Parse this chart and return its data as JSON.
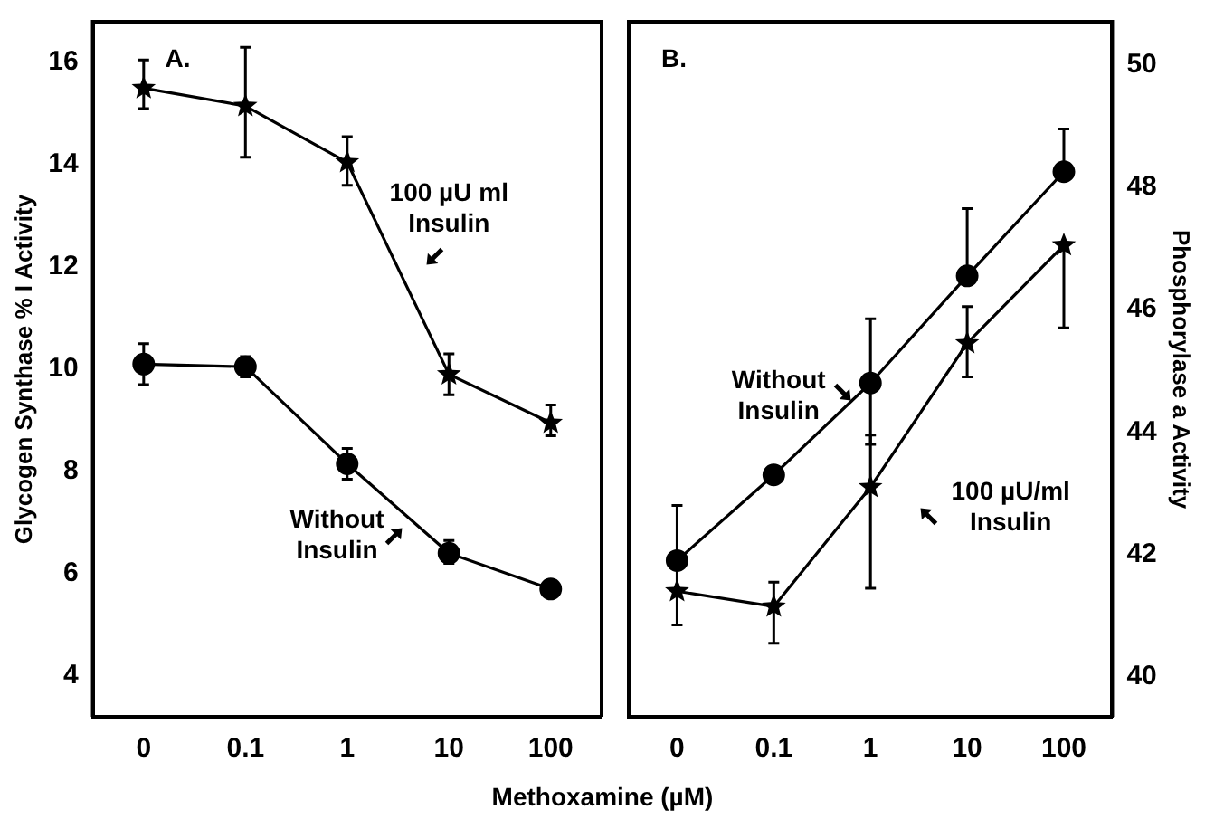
{
  "chart_data": [
    {
      "type": "line",
      "title": "A.",
      "xlabel": "Methoxamine (µM)",
      "ylabel": "Glycogen Synthase % I Activity",
      "categories": [
        "0",
        "0.1",
        "1",
        "10",
        "100"
      ],
      "ylim": [
        3.2,
        16.8
      ],
      "yticks": [
        4,
        6,
        8,
        10,
        12,
        14,
        16
      ],
      "grid": false,
      "legend": false,
      "annotations": [
        "100 µU ml\nInsulin",
        "Without\nInsulin"
      ],
      "series": [
        {
          "color": "#000000",
          "marker": "star",
          "values": [
            15.5,
            15.15,
            14.05,
            9.9,
            8.95
          ],
          "errors": [
            [
              15.1,
              16.05
            ],
            [
              14.15,
              16.3
            ],
            [
              13.6,
              14.55
            ],
            [
              9.5,
              10.3
            ],
            [
              8.7,
              9.3
            ]
          ]
        },
        {
          "color": "#000000",
          "marker": "circle",
          "values": [
            10.1,
            10.05,
            8.15,
            6.4,
            5.7
          ],
          "errors": [
            [
              9.7,
              10.5
            ],
            [
              9.85,
              10.25
            ],
            [
              7.85,
              8.45
            ],
            [
              6.2,
              6.65
            ],
            null
          ]
        }
      ]
    },
    {
      "type": "line",
      "title": "B.",
      "y2label": "Phosphorylase a Activity",
      "categories": [
        "0",
        "0.1",
        "1",
        "10",
        "100"
      ],
      "y2lim": [
        39.35,
        50.7
      ],
      "y2ticks": [
        40,
        42,
        44,
        46,
        48,
        50
      ],
      "grid": false,
      "legend": false,
      "annotations": [
        "Without\nInsulin",
        "100 µU/ml\nInsulin"
      ],
      "series": [
        {
          "color": "#000000",
          "marker": "circle",
          "axis": "y2",
          "values": [
            41.9,
            43.3,
            44.8,
            46.55,
            48.25
          ],
          "errors": [
            [
              41.9,
              42.8
            ],
            null,
            [
              43.8,
              45.85
            ],
            [
              46.55,
              47.65
            ],
            [
              48.25,
              48.95
            ]
          ]
        },
        {
          "color": "#000000",
          "marker": "star",
          "axis": "y2",
          "values": [
            41.4,
            41.15,
            43.1,
            45.45,
            47.05
          ],
          "errors": [
            [
              40.85,
              42.0
            ],
            [
              40.55,
              41.55
            ],
            [
              41.45,
              43.95
            ],
            [
              44.9,
              46.05
            ],
            [
              45.7,
              47.05
            ]
          ]
        }
      ]
    }
  ]
}
